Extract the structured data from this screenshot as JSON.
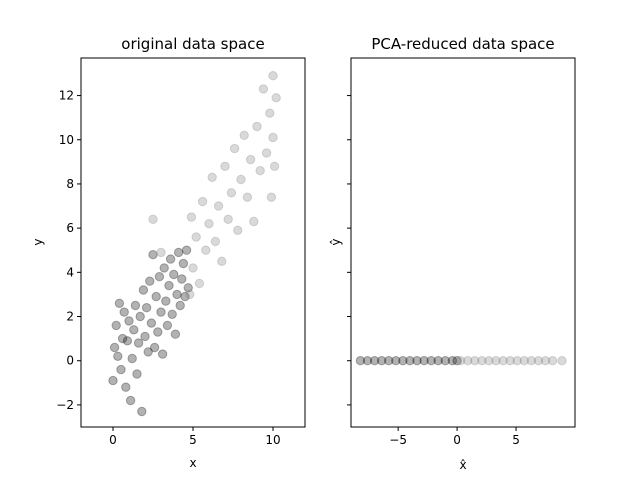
{
  "chart_data": [
    {
      "type": "scatter",
      "title": "original data space",
      "xlabel": "x",
      "ylabel": "y",
      "xlim": [
        -2,
        12
      ],
      "ylim": [
        -3,
        13.7
      ],
      "xticks": [
        0,
        5,
        10
      ],
      "yticks": [
        -2,
        0,
        2,
        4,
        6,
        8,
        10,
        12
      ],
      "grid": false,
      "series": [
        {
          "color": "#000000",
          "alpha": 0.3,
          "description": "x below about 4.7; y ≈ 0.8·x + 0.5 with spread",
          "points": [
            [
              0.0,
              -0.9
            ],
            [
              0.1,
              0.6
            ],
            [
              0.2,
              1.6
            ],
            [
              0.3,
              0.2
            ],
            [
              0.4,
              2.6
            ],
            [
              0.5,
              -0.4
            ],
            [
              0.6,
              1.0
            ],
            [
              0.7,
              2.2
            ],
            [
              0.8,
              -1.2
            ],
            [
              0.9,
              0.9
            ],
            [
              1.0,
              1.8
            ],
            [
              1.1,
              -1.8
            ],
            [
              1.2,
              0.1
            ],
            [
              1.3,
              1.4
            ],
            [
              1.4,
              2.5
            ],
            [
              1.5,
              -0.6
            ],
            [
              1.6,
              0.8
            ],
            [
              1.7,
              2.0
            ],
            [
              1.8,
              -2.3
            ],
            [
              1.9,
              3.2
            ],
            [
              2.0,
              1.1
            ],
            [
              2.1,
              2.4
            ],
            [
              2.2,
              0.4
            ],
            [
              2.3,
              3.6
            ],
            [
              2.4,
              1.7
            ],
            [
              2.5,
              4.8
            ],
            [
              2.6,
              0.6
            ],
            [
              2.7,
              2.9
            ],
            [
              2.8,
              1.3
            ],
            [
              2.9,
              3.8
            ],
            [
              3.0,
              2.2
            ],
            [
              3.1,
              0.3
            ],
            [
              3.2,
              4.2
            ],
            [
              3.3,
              2.7
            ],
            [
              3.4,
              1.6
            ],
            [
              3.5,
              3.4
            ],
            [
              3.6,
              4.6
            ],
            [
              3.7,
              2.1
            ],
            [
              3.8,
              3.9
            ],
            [
              3.9,
              1.2
            ],
            [
              4.0,
              3.0
            ],
            [
              4.1,
              4.9
            ],
            [
              4.2,
              2.5
            ],
            [
              4.3,
              3.7
            ],
            [
              4.4,
              4.4
            ],
            [
              4.5,
              2.9
            ],
            [
              4.6,
              5.0
            ],
            [
              4.7,
              3.3
            ]
          ]
        },
        {
          "color": "#808080",
          "alpha": 0.3,
          "description": "x above about 4.7; y ≈ 0.8·x + 0.5 with spread",
          "points": [
            [
              2.5,
              6.4
            ],
            [
              3.0,
              4.9
            ],
            [
              4.8,
              3.0
            ],
            [
              4.9,
              6.5
            ],
            [
              5.0,
              4.2
            ],
            [
              5.2,
              5.6
            ],
            [
              5.4,
              3.5
            ],
            [
              5.6,
              7.2
            ],
            [
              5.8,
              5.0
            ],
            [
              6.0,
              6.2
            ],
            [
              6.2,
              8.3
            ],
            [
              6.4,
              5.4
            ],
            [
              6.6,
              7.0
            ],
            [
              6.8,
              4.5
            ],
            [
              7.0,
              8.8
            ],
            [
              7.2,
              6.4
            ],
            [
              7.4,
              7.6
            ],
            [
              7.6,
              9.6
            ],
            [
              7.8,
              5.9
            ],
            [
              8.0,
              8.2
            ],
            [
              8.2,
              10.2
            ],
            [
              8.4,
              7.4
            ],
            [
              8.6,
              9.1
            ],
            [
              8.8,
              6.3
            ],
            [
              9.0,
              10.6
            ],
            [
              9.2,
              8.6
            ],
            [
              9.4,
              12.3
            ],
            [
              9.6,
              9.4
            ],
            [
              9.8,
              11.2
            ],
            [
              9.9,
              7.4
            ],
            [
              10.0,
              10.1
            ],
            [
              10.0,
              12.9
            ],
            [
              10.1,
              8.8
            ],
            [
              10.2,
              11.9
            ]
          ]
        }
      ]
    },
    {
      "type": "scatter",
      "title": "PCA-reduced data space",
      "xlabel": "x̂",
      "ylabel": "ŷ",
      "xlim": [
        -9,
        10
      ],
      "ylim": [
        -3,
        13.7
      ],
      "xticks": [
        -5,
        0,
        5
      ],
      "xtick_labels": [
        "−5",
        "0",
        "5"
      ],
      "yticks": [
        -2,
        0,
        2,
        4,
        6,
        8,
        10,
        12
      ],
      "y_tick_labels_shown": false,
      "grid": false,
      "series": [
        {
          "color": "#000000",
          "alpha": 0.3,
          "description": "points along ŷ = 0, x̂ from about −8.2 to 0",
          "points": [
            [
              -8.2,
              0
            ],
            [
              -7.6,
              0
            ],
            [
              -7.0,
              0
            ],
            [
              -6.4,
              0
            ],
            [
              -5.8,
              0
            ],
            [
              -5.2,
              0
            ],
            [
              -4.6,
              0
            ],
            [
              -4.0,
              0
            ],
            [
              -3.4,
              0
            ],
            [
              -2.8,
              0
            ],
            [
              -2.2,
              0
            ],
            [
              -1.6,
              0
            ],
            [
              -1.0,
              0
            ],
            [
              -0.4,
              0
            ],
            [
              0.0,
              0
            ]
          ]
        },
        {
          "color": "#808080",
          "alpha": 0.3,
          "description": "points along ŷ = 0, x̂ from about 0 to 8.9",
          "points": [
            [
              0.3,
              0
            ],
            [
              0.9,
              0
            ],
            [
              1.5,
              0
            ],
            [
              2.1,
              0
            ],
            [
              2.7,
              0
            ],
            [
              3.3,
              0
            ],
            [
              3.9,
              0
            ],
            [
              4.5,
              0
            ],
            [
              5.1,
              0
            ],
            [
              5.7,
              0
            ],
            [
              6.3,
              0
            ],
            [
              6.9,
              0
            ],
            [
              7.5,
              0
            ],
            [
              8.1,
              0
            ],
            [
              8.9,
              0
            ]
          ]
        }
      ]
    }
  ]
}
